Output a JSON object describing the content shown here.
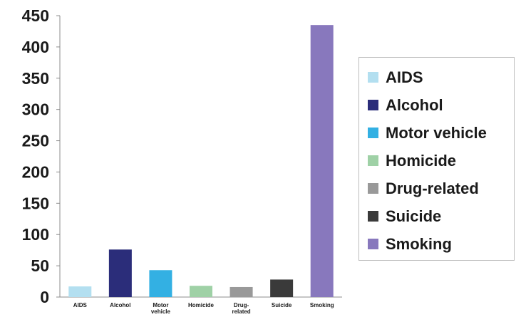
{
  "chart_data": {
    "type": "bar",
    "title": "",
    "xlabel": "",
    "ylabel": "",
    "categories": [
      "AIDS",
      "Alcohol",
      "Motor vehicle",
      "Homicide",
      "Drug-related",
      "Suicide",
      "Smoking"
    ],
    "category_label_lines": [
      [
        "AIDS"
      ],
      [
        "Alcohol"
      ],
      [
        "Motor",
        "vehicle"
      ],
      [
        "Homicide"
      ],
      [
        "Drug-",
        "related"
      ],
      [
        "Suicide"
      ],
      [
        "Smoking"
      ]
    ],
    "values": [
      17,
      76,
      43,
      18,
      16,
      28,
      435
    ],
    "colors": [
      "#b3dff0",
      "#2b2d7a",
      "#33b0e3",
      "#9fd1a6",
      "#999999",
      "#3a3a3a",
      "#8878bd"
    ],
    "ylim": [
      0,
      450
    ],
    "yticks": [
      0,
      50,
      100,
      150,
      200,
      250,
      300,
      350,
      400,
      450
    ],
    "grid": false,
    "legend_position": "right",
    "legend": [
      "AIDS",
      "Alcohol",
      "Motor vehicle",
      "Homicide",
      "Drug-related",
      "Suicide",
      "Smoking"
    ]
  }
}
